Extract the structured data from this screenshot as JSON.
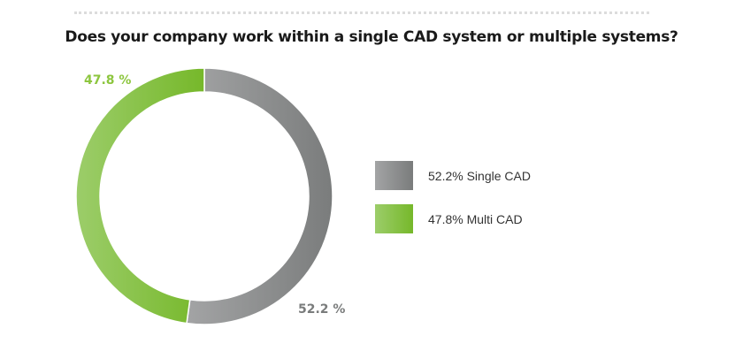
{
  "chart_data": {
    "type": "pie",
    "variant": "donut",
    "title": "Does your company work within a single CAD system or multiple systems?",
    "slices": [
      {
        "name": "Single CAD",
        "value": 52.2,
        "label": "52.2 %",
        "legend": "52.2% Single CAD",
        "color": "#7a7c7c",
        "color_light": "#a3a4a5"
      },
      {
        "name": "Multi CAD",
        "value": 47.8,
        "label": "47.8 %",
        "legend": "47.8% Multi CAD",
        "color": "#76b82a",
        "color_light": "#9ccd6a"
      }
    ],
    "legend_position": "right"
  }
}
